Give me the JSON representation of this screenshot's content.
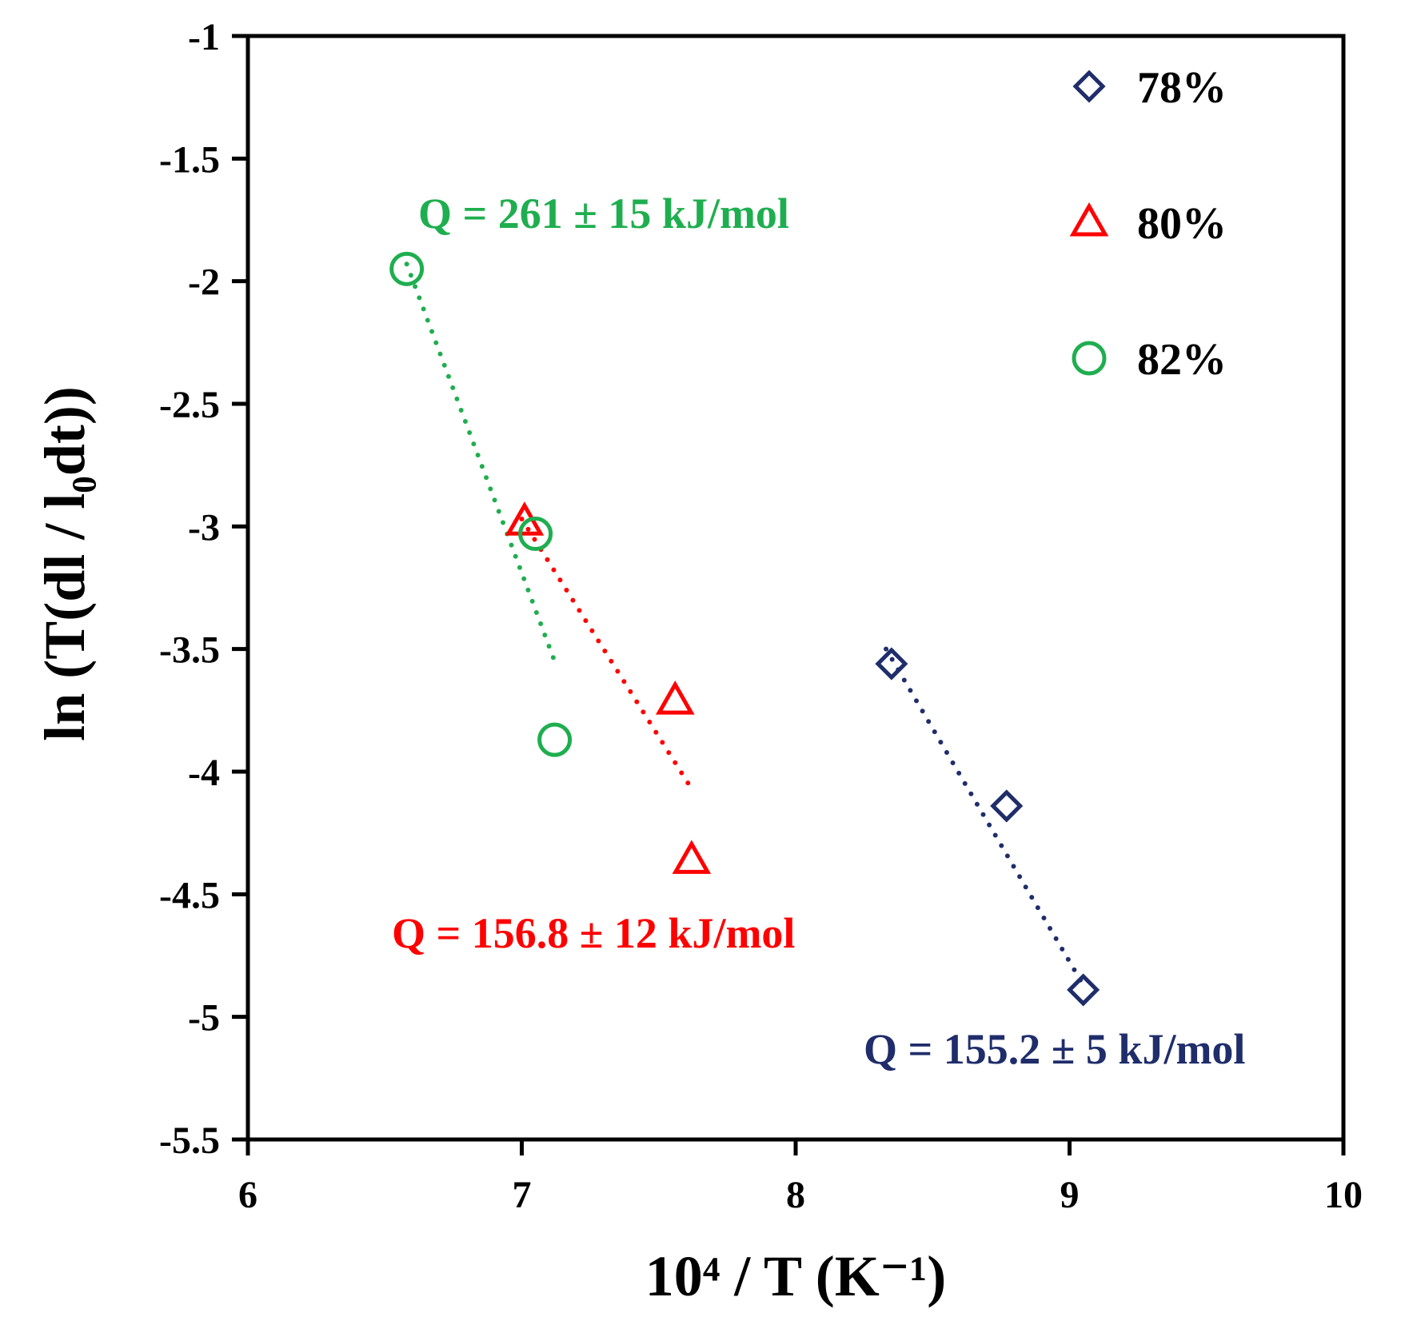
{
  "chart_data": {
    "type": "scatter",
    "xlabel": "10⁴ / T (K⁻¹)",
    "ylabel": "ln (T(dl / l₀dt))",
    "xlim": [
      6,
      10
    ],
    "ylim": [
      -5.5,
      -1
    ],
    "x_ticks": [
      "6",
      "7",
      "8",
      "9",
      "10"
    ],
    "y_ticks": [
      "-1",
      "-1.5",
      "-2",
      "-2.5",
      "-3",
      "-3.5",
      "-4",
      "-4.5",
      "-5",
      "-5.5"
    ],
    "grid": false,
    "legend_position": "top-right",
    "series": [
      {
        "name": "78%",
        "marker": "diamond",
        "color": "#1f2d6b",
        "x": [
          8.35,
          8.77,
          9.05
        ],
        "y": [
          -3.56,
          -4.14,
          -4.89
        ],
        "trendline": {
          "x": [
            8.33,
            9.05
          ],
          "y": [
            -3.5,
            -4.87
          ]
        },
        "annotation": "Q = 155.2 ± 5 kJ/mol"
      },
      {
        "name": "80%",
        "marker": "triangle",
        "color": "#ff0000",
        "x": [
          7.01,
          7.56,
          7.62
        ],
        "y": [
          -2.98,
          -3.71,
          -4.36
        ],
        "trendline": {
          "x": [
            7.0,
            7.62
          ],
          "y": [
            -2.97,
            -4.07
          ]
        },
        "annotation": "Q = 156.8 ± 12 kJ/mol"
      },
      {
        "name": "82%",
        "marker": "circle",
        "color": "#1fae4f",
        "x": [
          6.58,
          7.05,
          7.12
        ],
        "y": [
          -1.95,
          -3.03,
          -3.87
        ],
        "trendline": {
          "x": [
            6.58,
            7.13
          ],
          "y": [
            -1.93,
            -3.58
          ]
        },
        "annotation": "Q = 261 ± 15 kJ/mol"
      }
    ]
  }
}
